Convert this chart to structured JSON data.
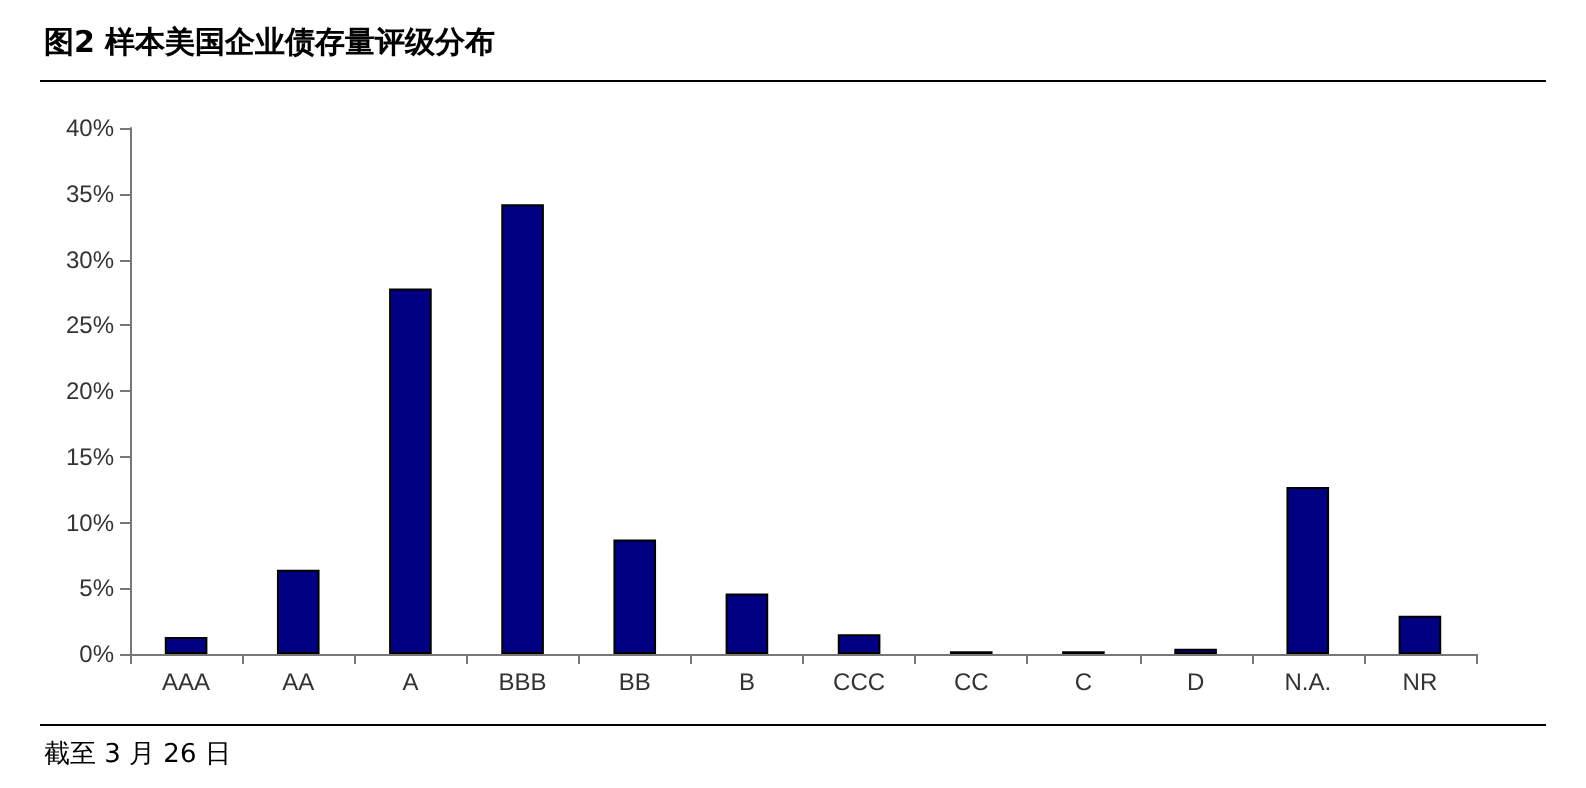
{
  "chart_data": {
    "type": "bar",
    "title": "图2  样本美国企业债存量评级分布",
    "categories": [
      "AAA",
      "AA",
      "A",
      "BBB",
      "BB",
      "B",
      "CCC",
      "CC",
      "C",
      "D",
      "N.A.",
      "NR"
    ],
    "values": [
      1.3,
      6.4,
      27.8,
      34.2,
      8.7,
      4.6,
      1.5,
      0.2,
      0.2,
      0.4,
      12.7,
      2.9
    ],
    "color": "#000080",
    "ylim": [
      0,
      40
    ],
    "yticks": [
      {
        "value": 0,
        "label": "0%"
      },
      {
        "value": 5,
        "label": "5%"
      },
      {
        "value": 10,
        "label": "10%"
      },
      {
        "value": 15,
        "label": "15%"
      },
      {
        "value": 20,
        "label": "20%"
      },
      {
        "value": 25,
        "label": "25%"
      },
      {
        "value": 30,
        "label": "30%"
      },
      {
        "value": 35,
        "label": "35%"
      },
      {
        "value": 40,
        "label": "40%"
      }
    ],
    "grid": false,
    "annotations": [
      "截至 3 月 26 日"
    ]
  }
}
